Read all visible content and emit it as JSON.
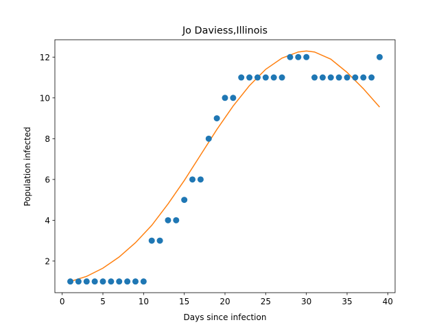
{
  "chart_data": {
    "type": "scatter",
    "title": "Jo Daviess,Illinois",
    "xlabel": "Days since infection",
    "ylabel": "Population infected",
    "xlim": [
      -0.9,
      40.9
    ],
    "ylim": [
      0.45,
      12.85
    ],
    "xticks": [
      0,
      5,
      10,
      15,
      20,
      25,
      30,
      35,
      40
    ],
    "yticks": [
      2,
      4,
      6,
      8,
      10,
      12
    ],
    "grid": false,
    "colors": {
      "points": "#1f77b4",
      "fit": "#ff7f0e"
    },
    "series": [
      {
        "type": "scatter",
        "x": [
          1,
          2,
          3,
          4,
          5,
          6,
          7,
          8,
          9,
          10,
          11,
          12,
          13,
          14,
          15,
          16,
          17,
          18,
          19,
          20,
          21,
          22,
          23,
          24,
          25,
          26,
          27,
          28,
          29,
          30,
          31,
          32,
          33,
          34,
          35,
          36,
          37,
          38,
          39
        ],
        "values": [
          1,
          1,
          1,
          1,
          1,
          1,
          1,
          1,
          1,
          1,
          3,
          3,
          4,
          4,
          5,
          6,
          6,
          8,
          9,
          10,
          10,
          11,
          11,
          11,
          11,
          11,
          11,
          12,
          12,
          12,
          11,
          11,
          11,
          11,
          11,
          11,
          11,
          11,
          12
        ]
      },
      {
        "type": "line",
        "x": [
          1,
          3,
          5,
          7,
          9,
          11,
          13,
          15,
          17,
          19,
          21,
          23,
          25,
          27,
          29,
          30,
          31,
          33,
          35,
          37,
          39
        ],
        "values": [
          1.0,
          1.25,
          1.65,
          2.2,
          2.9,
          3.75,
          4.8,
          5.95,
          7.2,
          8.45,
          9.6,
          10.6,
          11.4,
          11.95,
          12.25,
          12.3,
          12.25,
          11.9,
          11.25,
          10.45,
          9.55
        ]
      }
    ]
  }
}
